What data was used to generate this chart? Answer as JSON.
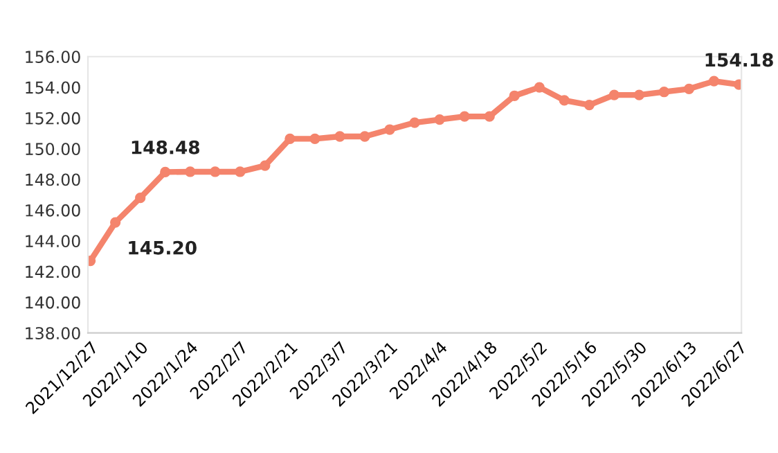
{
  "chart_data": {
    "type": "line",
    "categories": [
      "2021/12/27",
      null,
      "2022/1/10",
      null,
      "2022/1/24",
      null,
      "2022/2/7",
      null,
      "2022/2/21",
      null,
      "2022/3/7",
      null,
      "2022/3/21",
      null,
      "2022/4/4",
      null,
      "2022/4/18",
      null,
      "2022/5/2",
      null,
      "2022/5/16",
      null,
      "2022/5/30",
      null,
      "2022/6/13",
      null,
      "2022/6/27"
    ],
    "series": [
      {
        "color": "#f4846c",
        "values": [
          142.7,
          145.2,
          146.8,
          148.48,
          148.5,
          148.5,
          148.5,
          148.9,
          150.65,
          150.65,
          150.8,
          150.8,
          151.25,
          151.7,
          151.9,
          152.1,
          152.1,
          153.45,
          154.0,
          153.15,
          152.85,
          153.5,
          153.5,
          153.7,
          153.9,
          154.4,
          154.18
        ],
        "value_labels": [
          null,
          "145.20",
          null,
          "148.48",
          null,
          null,
          null,
          null,
          null,
          null,
          null,
          null,
          null,
          null,
          null,
          null,
          null,
          null,
          null,
          null,
          null,
          null,
          null,
          null,
          null,
          null,
          "154.18"
        ]
      }
    ],
    "ylim": [
      138,
      156
    ],
    "yticks": [
      {
        "value": 138,
        "label": "138.00"
      },
      {
        "value": 140,
        "label": "140.00"
      },
      {
        "value": 142,
        "label": "142.00"
      },
      {
        "value": 144,
        "label": "144.00"
      },
      {
        "value": 146,
        "label": "146.00"
      },
      {
        "value": 148,
        "label": "148.00"
      },
      {
        "value": 150,
        "label": "150.00"
      },
      {
        "value": 152,
        "label": "152.00"
      },
      {
        "value": 154,
        "label": "154.00"
      },
      {
        "value": 156,
        "label": "156.00"
      }
    ],
    "marker": "circle",
    "line_style": "solid",
    "grid": false,
    "legend": false
  }
}
